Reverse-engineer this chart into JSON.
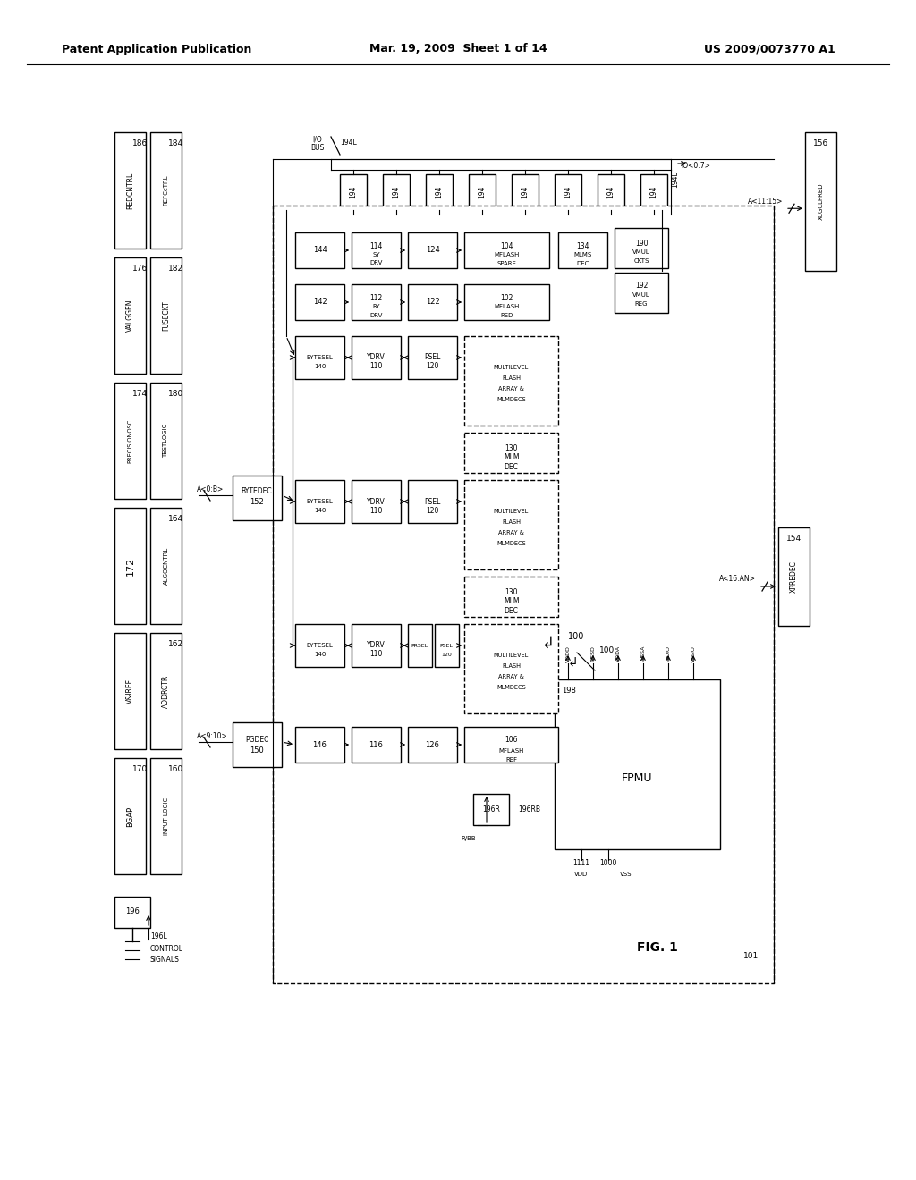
{
  "header_left": "Patent Application Publication",
  "header_mid": "Mar. 19, 2009  Sheet 1 of 14",
  "header_right": "US 2009/0073770 A1",
  "fig_label": "FIG. 1",
  "bg": "#ffffff"
}
